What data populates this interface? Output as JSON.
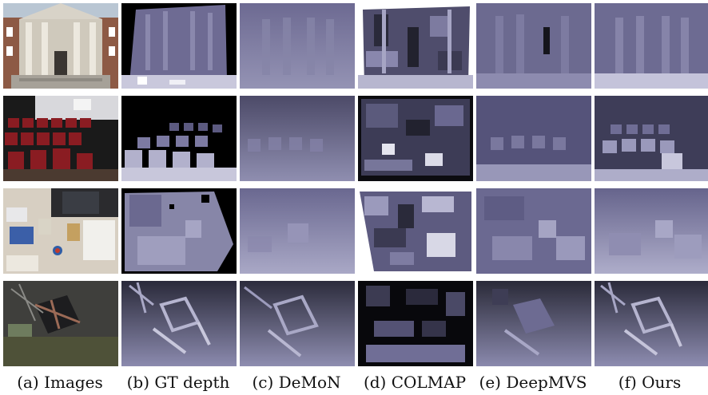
{
  "figure": {
    "columns": [
      {
        "caption": "(a)  Images"
      },
      {
        "caption": "(b)  GT depth"
      },
      {
        "caption": "(c)  DeMoN"
      },
      {
        "caption": "(d)  COLMAP"
      },
      {
        "caption": "(e)  DeepMVS"
      },
      {
        "caption": "(f)  Ours"
      }
    ],
    "rows": [
      {
        "scene": "building facade"
      },
      {
        "scene": "auditorium chairs"
      },
      {
        "scene": "cluttered desk"
      },
      {
        "scene": "synthetic chair"
      }
    ]
  }
}
